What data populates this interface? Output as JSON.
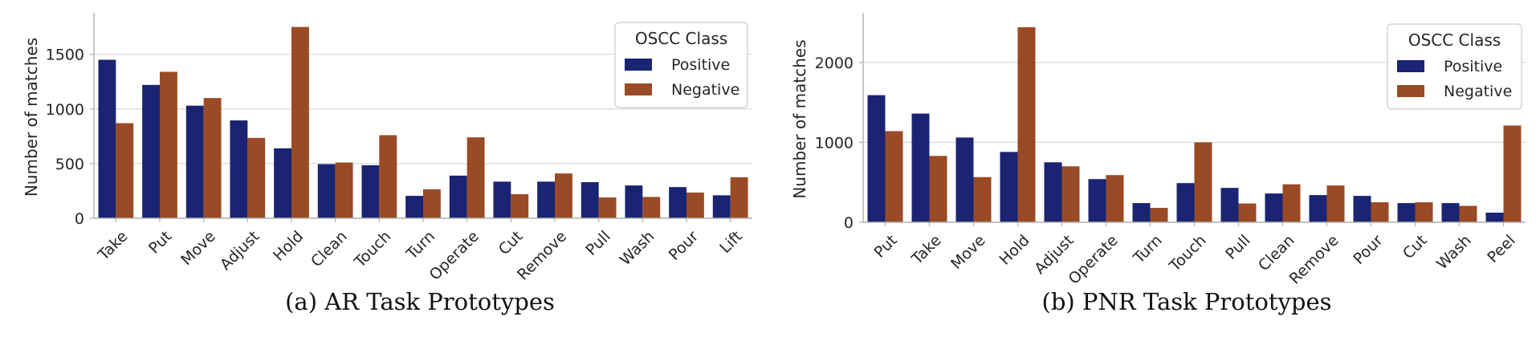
{
  "colors": {
    "positive": "#1a2472",
    "negative": "#9a4a24",
    "grid": "#d9d9d9",
    "axis": "#b0b0b0"
  },
  "chart_data": [
    {
      "type": "bar",
      "caption": "(a) AR Task Prototypes",
      "ylabel": "Number of matches",
      "ylim": [
        0,
        1850
      ],
      "yticks": [
        0,
        500,
        1000,
        1500
      ],
      "grid": true,
      "legend": {
        "title": "OSCC Class",
        "placement": "top-right"
      },
      "categories": [
        "Take",
        "Put",
        "Move",
        "Adjust",
        "Hold",
        "Clean",
        "Touch",
        "Turn",
        "Operate",
        "Cut",
        "Remove",
        "Pull",
        "Wash",
        "Pour",
        "Lift"
      ],
      "series": [
        {
          "name": "Positive",
          "values": [
            1450,
            1220,
            1030,
            895,
            640,
            495,
            485,
            205,
            390,
            335,
            335,
            330,
            300,
            285,
            210
          ]
        },
        {
          "name": "Negative",
          "values": [
            870,
            1340,
            1100,
            735,
            1750,
            510,
            760,
            265,
            740,
            220,
            410,
            190,
            195,
            235,
            375
          ]
        }
      ]
    },
    {
      "type": "bar",
      "caption": "(b) PNR Task Prototypes",
      "ylabel": "Number of matches",
      "ylim": [
        0,
        2580
      ],
      "yticks": [
        0,
        1000,
        2000
      ],
      "grid": true,
      "legend": {
        "title": "OSCC Class",
        "placement": "top-right"
      },
      "categories": [
        "Put",
        "Take",
        "Move",
        "Hold",
        "Adjust",
        "Operate",
        "Turn",
        "Touch",
        "Pull",
        "Clean",
        "Remove",
        "Pour",
        "Cut",
        "Wash",
        "Peel"
      ],
      "series": [
        {
          "name": "Positive",
          "values": [
            1590,
            1360,
            1060,
            880,
            750,
            540,
            240,
            490,
            430,
            360,
            340,
            330,
            240,
            240,
            120
          ]
        },
        {
          "name": "Negative",
          "values": [
            1140,
            830,
            565,
            2440,
            700,
            590,
            180,
            1000,
            235,
            475,
            460,
            250,
            250,
            205,
            1210
          ]
        }
      ]
    }
  ]
}
